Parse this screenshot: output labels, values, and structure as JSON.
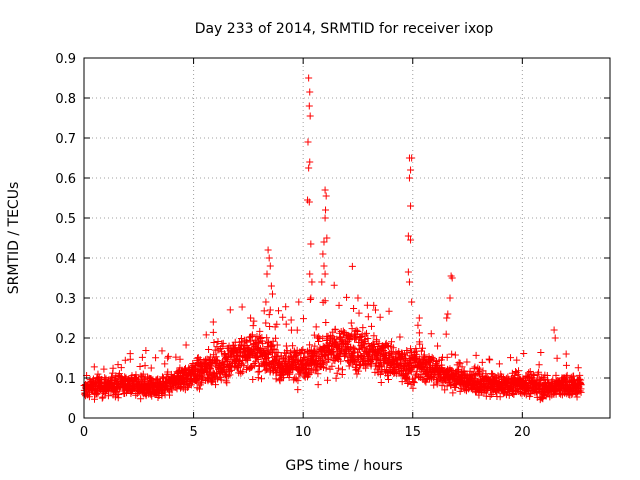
{
  "chart_data": {
    "type": "scatter",
    "title": "Day 233 of 2014, SRMTID for receiver ixop",
    "xlabel": "GPS time / hours",
    "ylabel": "SRMTID / TECUs",
    "xlim": [
      0,
      24
    ],
    "ylim": [
      0,
      0.9
    ],
    "x_ticks": [
      0,
      5,
      10,
      15,
      20
    ],
    "y_ticks": [
      0,
      0.1,
      0.2,
      0.3,
      0.4,
      0.5,
      0.6,
      0.7,
      0.8,
      0.9
    ],
    "x_tick_labels": [
      "0",
      "5",
      "10",
      "15",
      "20"
    ],
    "y_tick_labels": [
      "0",
      "0.1",
      "0.2",
      "0.3",
      "0.4",
      "0.5",
      "0.6",
      "0.7",
      "0.8",
      "0.9"
    ],
    "grid": true,
    "marker": "+",
    "color": "#ff0000",
    "background_points": {
      "description": "dense band of points, 0 to 22.7 hours",
      "x_start": 0,
      "x_end": 22.7,
      "count": 2600,
      "baseline": [
        [
          0,
          0.075
        ],
        [
          2,
          0.085
        ],
        [
          3.5,
          0.075
        ],
        [
          5,
          0.11
        ],
        [
          6,
          0.13
        ],
        [
          7,
          0.15
        ],
        [
          8,
          0.17
        ],
        [
          9,
          0.13
        ],
        [
          10,
          0.14
        ],
        [
          11,
          0.16
        ],
        [
          12,
          0.18
        ],
        [
          13,
          0.16
        ],
        [
          14,
          0.14
        ],
        [
          15,
          0.13
        ],
        [
          16,
          0.12
        ],
        [
          17,
          0.1
        ],
        [
          18,
          0.085
        ],
        [
          19,
          0.08
        ],
        [
          20,
          0.085
        ],
        [
          21,
          0.075
        ],
        [
          22,
          0.08
        ],
        [
          22.7,
          0.08
        ]
      ]
    },
    "peak_points": [
      {
        "x": 8.4,
        "y": 0.42
      },
      {
        "x": 8.45,
        "y": 0.4
      },
      {
        "x": 8.5,
        "y": 0.38
      },
      {
        "x": 8.35,
        "y": 0.36
      },
      {
        "x": 8.55,
        "y": 0.33
      },
      {
        "x": 8.6,
        "y": 0.31
      },
      {
        "x": 8.3,
        "y": 0.29
      },
      {
        "x": 8.5,
        "y": 0.27
      },
      {
        "x": 10.25,
        "y": 0.85
      },
      {
        "x": 10.3,
        "y": 0.815
      },
      {
        "x": 10.28,
        "y": 0.78
      },
      {
        "x": 10.32,
        "y": 0.755
      },
      {
        "x": 10.22,
        "y": 0.69
      },
      {
        "x": 10.3,
        "y": 0.64
      },
      {
        "x": 10.25,
        "y": 0.625
      },
      {
        "x": 10.2,
        "y": 0.545
      },
      {
        "x": 10.28,
        "y": 0.54
      },
      {
        "x": 10.35,
        "y": 0.435
      },
      {
        "x": 10.3,
        "y": 0.36
      },
      {
        "x": 10.4,
        "y": 0.34
      },
      {
        "x": 10.35,
        "y": 0.3
      },
      {
        "x": 11.0,
        "y": 0.57
      },
      {
        "x": 11.05,
        "y": 0.555
      },
      {
        "x": 11.02,
        "y": 0.52
      },
      {
        "x": 11.0,
        "y": 0.5
      },
      {
        "x": 11.08,
        "y": 0.45
      },
      {
        "x": 10.95,
        "y": 0.44
      },
      {
        "x": 10.9,
        "y": 0.41
      },
      {
        "x": 10.95,
        "y": 0.38
      },
      {
        "x": 11.0,
        "y": 0.36
      },
      {
        "x": 10.85,
        "y": 0.34
      },
      {
        "x": 14.85,
        "y": 0.65
      },
      {
        "x": 14.95,
        "y": 0.65
      },
      {
        "x": 14.9,
        "y": 0.62
      },
      {
        "x": 14.85,
        "y": 0.6
      },
      {
        "x": 14.9,
        "y": 0.53
      },
      {
        "x": 14.8,
        "y": 0.455
      },
      {
        "x": 14.9,
        "y": 0.445
      },
      {
        "x": 14.8,
        "y": 0.365
      },
      {
        "x": 14.85,
        "y": 0.34
      },
      {
        "x": 14.95,
        "y": 0.29
      },
      {
        "x": 16.75,
        "y": 0.355
      },
      {
        "x": 16.8,
        "y": 0.35
      },
      {
        "x": 16.7,
        "y": 0.3
      },
      {
        "x": 16.6,
        "y": 0.26
      },
      {
        "x": 16.55,
        "y": 0.25
      },
      {
        "x": 21.45,
        "y": 0.22
      },
      {
        "x": 21.5,
        "y": 0.2
      },
      {
        "x": 22.0,
        "y": 0.16
      },
      {
        "x": 15.3,
        "y": 0.25
      },
      {
        "x": 13.3,
        "y": 0.27
      },
      {
        "x": 12.5,
        "y": 0.3
      },
      {
        "x": 9.8,
        "y": 0.29
      },
      {
        "x": 7.6,
        "y": 0.25
      },
      {
        "x": 5.9,
        "y": 0.24
      }
    ],
    "colors": {
      "points": "#ff0000",
      "grid": "#a0a0a0",
      "axis": "#000000"
    }
  }
}
